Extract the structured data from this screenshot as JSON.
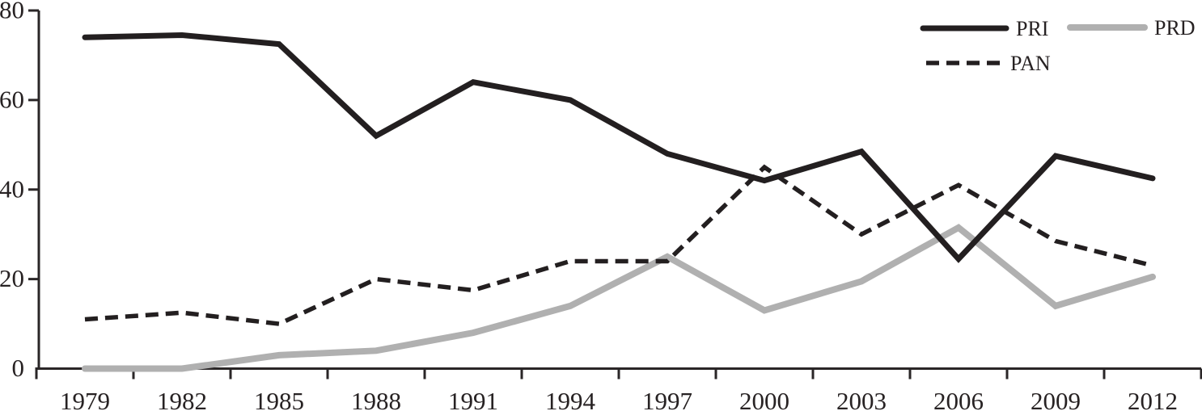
{
  "chart_data": {
    "type": "line",
    "title": "",
    "xlabel": "",
    "ylabel": "",
    "categories": [
      "1979",
      "1982",
      "1985",
      "1988",
      "1991",
      "1994",
      "1997",
      "2000",
      "2003",
      "2006",
      "2009",
      "2012"
    ],
    "series": [
      {
        "name": "PRI",
        "style": "solid",
        "color": "#231f20",
        "values": [
          74,
          74.5,
          72.5,
          52,
          64,
          60,
          48,
          42,
          48.5,
          24.5,
          47.5,
          42.5
        ]
      },
      {
        "name": "PRD",
        "style": "solid",
        "color": "#b0b0b0",
        "values": [
          0,
          0,
          3,
          4,
          8,
          14,
          25,
          13,
          19.5,
          31.5,
          14,
          20.5
        ]
      },
      {
        "name": "PAN",
        "style": "dashed",
        "color": "#231f20",
        "values": [
          11,
          12.5,
          10,
          20,
          17.5,
          24,
          24,
          45,
          30,
          41,
          28.5,
          23
        ]
      }
    ],
    "ylim": [
      0,
      80
    ],
    "yticks": [
      0,
      20,
      40,
      60,
      80
    ],
    "grid": false,
    "legend_position": "top-right",
    "axis_color": "#2a2627",
    "text_color": "#272223"
  }
}
